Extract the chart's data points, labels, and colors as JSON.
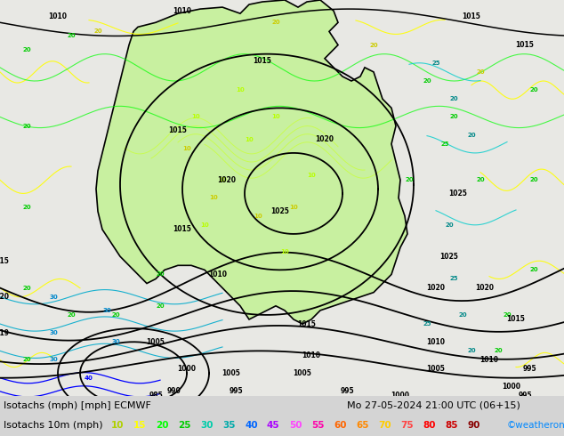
{
  "title_line1": "Isotachs (mph) [mph] ECMWF",
  "title_line2": "Mo 27-05-2024 21:00 UTC (06+15)",
  "legend_label": "Isotachs 10m (mph)",
  "legend_values": [
    10,
    15,
    20,
    25,
    30,
    35,
    40,
    45,
    50,
    55,
    60,
    65,
    70,
    75,
    80,
    85,
    90
  ],
  "legend_colors": [
    "#b8ff00",
    "#ffff00",
    "#00ff00",
    "#00cc00",
    "#00cccc",
    "#008080",
    "#0000ff",
    "#8800cc",
    "#cc00cc",
    "#ff00ff",
    "#ff6600",
    "#ff8800",
    "#ffaa00",
    "#ff6644",
    "#ff0000",
    "#cc0000",
    "#880000"
  ],
  "copyright": "©weatheronline.co.uk",
  "bg_color": "#d4d4d4",
  "ocean_color": "#ccdcec",
  "land_color": "#f0f0e8",
  "australia_fill": "#c8f0a0",
  "fig_width": 6.34,
  "fig_height": 4.9,
  "dpi": 100
}
